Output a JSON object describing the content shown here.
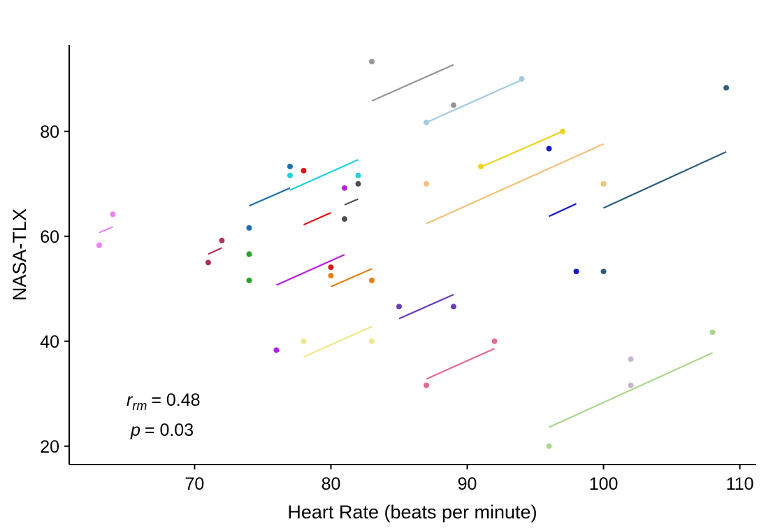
{
  "chart_data": {
    "type": "scatter",
    "title": "",
    "xlabel": "Heart Rate (beats per minute)",
    "ylabel": "NASA-TLX",
    "xlim": [
      60.8,
      111.2
    ],
    "ylim": [
      16.5,
      96.5
    ],
    "xticks": [
      70,
      80,
      90,
      100,
      110
    ],
    "yticks": [
      20,
      40,
      60,
      80
    ],
    "grid": false,
    "annotation": {
      "r_symbol": "r",
      "r_subscript": "rm",
      "r_value": "= 0.48",
      "p_symbol": "p",
      "p_value": "= 0.03"
    },
    "series": [
      {
        "color": "#ee82ee",
        "points": [
          [
            63,
            58.3
          ],
          [
            64,
            64.2
          ]
        ],
        "fit": [
          [
            63,
            60.7
          ],
          [
            64,
            61.8
          ]
        ]
      },
      {
        "color": "#b03060",
        "points": [
          [
            71,
            55.0
          ],
          [
            72,
            59.2
          ]
        ],
        "fit": [
          [
            71,
            56.6
          ],
          [
            72,
            57.8
          ]
        ]
      },
      {
        "color": "#1f6fb2",
        "points": [
          [
            74,
            61.6
          ],
          [
            77,
            73.3
          ]
        ],
        "fit": [
          [
            74,
            65.8
          ],
          [
            77,
            69.2
          ]
        ]
      },
      {
        "color": "#2ca02c",
        "points": [
          [
            74,
            56.6
          ],
          [
            74,
            51.6
          ]
        ],
        "fit": []
      },
      {
        "color": "#b41fdc",
        "points": [
          [
            76,
            38.3
          ],
          [
            81,
            69.2
          ]
        ],
        "fit": [
          [
            76,
            50.7
          ],
          [
            81,
            56.5
          ]
        ]
      },
      {
        "color": "#1fd2dc",
        "points": [
          [
            77,
            71.6
          ],
          [
            82,
            71.6
          ]
        ],
        "fit": [
          [
            77,
            68.8
          ],
          [
            82,
            74.6
          ]
        ]
      },
      {
        "color": "#f0e68c",
        "points": [
          [
            78,
            40.0
          ],
          [
            83,
            40.0
          ]
        ],
        "fit": [
          [
            78,
            37.0
          ],
          [
            83,
            42.8
          ]
        ]
      },
      {
        "color": "#dc1414",
        "points": [
          [
            78,
            72.5
          ],
          [
            80,
            54.1
          ]
        ],
        "fit": [
          [
            78,
            62.2
          ],
          [
            80,
            64.5
          ]
        ]
      },
      {
        "color": "#e08214",
        "points": [
          [
            80,
            52.5
          ],
          [
            83,
            51.6
          ]
        ],
        "fit": [
          [
            80,
            50.4
          ],
          [
            83,
            53.8
          ]
        ]
      },
      {
        "color": "#505050",
        "points": [
          [
            81,
            63.3
          ],
          [
            82,
            70.0
          ]
        ],
        "fit": [
          [
            81,
            66.0
          ],
          [
            82,
            67.1
          ]
        ]
      },
      {
        "color": "#969696",
        "points": [
          [
            83,
            93.3
          ],
          [
            89,
            85.0
          ]
        ],
        "fit": [
          [
            83,
            85.8
          ],
          [
            89,
            92.7
          ]
        ]
      },
      {
        "color": "#6a3db8",
        "points": [
          [
            85,
            46.6
          ],
          [
            89,
            46.6
          ]
        ],
        "fit": [
          [
            85,
            44.3
          ],
          [
            89,
            48.9
          ]
        ]
      },
      {
        "color": "#e26b8f",
        "points": [
          [
            87,
            31.6
          ],
          [
            92,
            40.0
          ]
        ],
        "fit": [
          [
            87,
            32.8
          ],
          [
            92,
            38.6
          ]
        ]
      },
      {
        "color": "#f2c27a",
        "points": [
          [
            87,
            70.0
          ],
          [
            100,
            70.0
          ]
        ],
        "fit": [
          [
            87,
            62.4
          ],
          [
            100,
            77.6
          ]
        ]
      },
      {
        "color": "#a3cce0",
        "points": [
          [
            87,
            81.7
          ],
          [
            94,
            90.0
          ]
        ],
        "fit": [
          [
            87,
            81.7
          ],
          [
            94,
            89.8
          ]
        ]
      },
      {
        "color": "#f0d21e",
        "points": [
          [
            91,
            73.3
          ],
          [
            97,
            80.0
          ]
        ],
        "fit": [
          [
            91,
            73.2
          ],
          [
            97,
            80.0
          ]
        ]
      },
      {
        "color": "#1414c8",
        "points": [
          [
            96,
            76.7
          ],
          [
            98,
            53.3
          ]
        ],
        "fit": [
          [
            96,
            63.8
          ],
          [
            98,
            66.2
          ]
        ]
      },
      {
        "color": "#a8d88c",
        "points": [
          [
            96,
            20.0
          ],
          [
            108,
            41.7
          ]
        ],
        "fit": [
          [
            96,
            23.6
          ],
          [
            108,
            37.8
          ]
        ]
      },
      {
        "color": "#2e5e7e",
        "points": [
          [
            100,
            53.3
          ],
          [
            109,
            88.3
          ]
        ],
        "fit": [
          [
            100,
            65.4
          ],
          [
            109,
            76.1
          ]
        ]
      },
      {
        "color": "#c8b4d2",
        "points": [
          [
            102,
            36.6
          ],
          [
            102,
            31.6
          ]
        ],
        "fit": []
      }
    ]
  }
}
